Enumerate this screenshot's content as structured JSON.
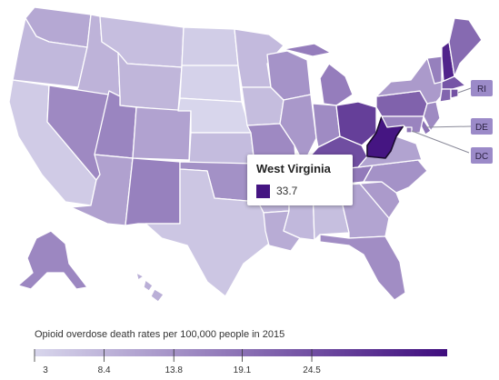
{
  "map": {
    "states": [
      {
        "id": "WA",
        "rate": 10.3
      },
      {
        "id": "OR",
        "rate": 7.8
      },
      {
        "id": "CA",
        "rate": 4.7
      },
      {
        "id": "ID",
        "rate": 8.5
      },
      {
        "id": "NV",
        "rate": 15.2
      },
      {
        "id": "MT",
        "rate": 6.8
      },
      {
        "id": "WY",
        "rate": 8.1
      },
      {
        "id": "UT",
        "rate": 15.9
      },
      {
        "id": "AZ",
        "rate": 11.4
      },
      {
        "id": "CO",
        "rate": 11.2
      },
      {
        "id": "NM",
        "rate": 16.5
      },
      {
        "id": "ND",
        "rate": 4.4
      },
      {
        "id": "SD",
        "rate": 3.6
      },
      {
        "id": "NE",
        "rate": 3.0
      },
      {
        "id": "KS",
        "rate": 7.2
      },
      {
        "id": "OK",
        "rate": 14.0
      },
      {
        "id": "TX",
        "rate": 5.6
      },
      {
        "id": "MN",
        "rate": 7.4
      },
      {
        "id": "IA",
        "rate": 7.0
      },
      {
        "id": "MO",
        "rate": 15.2
      },
      {
        "id": "AR",
        "rate": 8.2
      },
      {
        "id": "LA",
        "rate": 9.7
      },
      {
        "id": "WI",
        "rate": 13.6
      },
      {
        "id": "IL",
        "rate": 12.9
      },
      {
        "id": "MI",
        "rate": 17.1
      },
      {
        "id": "IN",
        "rate": 14.9
      },
      {
        "id": "OH",
        "rate": 27.1
      },
      {
        "id": "KY",
        "rate": 24.7
      },
      {
        "id": "TN",
        "rate": 17.6
      },
      {
        "id": "MS",
        "rate": 7.8
      },
      {
        "id": "AL",
        "rate": 6.7
      },
      {
        "id": "GA",
        "rate": 11.0
      },
      {
        "id": "FL",
        "rate": 14.6
      },
      {
        "id": "SC",
        "rate": 12.5
      },
      {
        "id": "NC",
        "rate": 13.8
      },
      {
        "id": "VA",
        "rate": 11.1
      },
      {
        "id": "WV",
        "rate": 33.7
      },
      {
        "id": "PA",
        "rate": 21.5
      },
      {
        "id": "NY",
        "rate": 12.5
      },
      {
        "id": "VT",
        "rate": 16.7
      },
      {
        "id": "NH",
        "rate": 31.3
      },
      {
        "id": "ME",
        "rate": 20.2
      },
      {
        "id": "MA",
        "rate": 23.5
      },
      {
        "id": "RI",
        "rate": 24.1
      },
      {
        "id": "CT",
        "rate": 21.0
      },
      {
        "id": "NJ",
        "rate": 15.1
      },
      {
        "id": "DE",
        "rate": 19.1
      },
      {
        "id": "MD",
        "rate": 16.0
      },
      {
        "id": "DC",
        "rate": 18.3
      },
      {
        "id": "AK",
        "rate": 15.5
      },
      {
        "id": "HI",
        "rate": 9.2
      }
    ],
    "tags": [
      "RI",
      "DE",
      "DC"
    ]
  },
  "tooltip": {
    "state": "West Virginia",
    "value": "33.7"
  },
  "legend": {
    "title": "Opioid overdose death rates per 100,000 people in 2015",
    "ticks": [
      "3",
      "8.4",
      "13.8",
      "19.1",
      "24.5"
    ],
    "tick_values": [
      3,
      8.4,
      13.8,
      19.1,
      24.5
    ],
    "domain": [
      3,
      35
    ],
    "color_low": "#d8d6ec",
    "color_high": "#3f0d7e"
  }
}
